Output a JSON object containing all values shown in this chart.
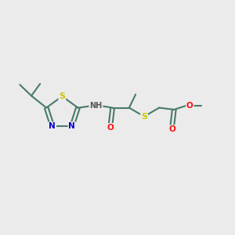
{
  "bg_color": "#EBEBEB",
  "bond_color": "#4a7a6a",
  "bond_width": 1.5,
  "atom_colors": {
    "S": "#c8c800",
    "N": "#0000cc",
    "O": "#ff1111",
    "H": "#555555",
    "C": "#4a7a6a"
  },
  "font_size": 7.5,
  "fig_width": 3.0,
  "fig_height": 3.0,
  "dpi": 100
}
